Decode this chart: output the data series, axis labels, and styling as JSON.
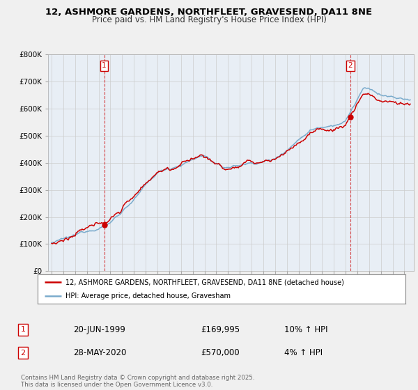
{
  "title": "12, ASHMORE GARDENS, NORTHFLEET, GRAVESEND, DA11 8NE",
  "subtitle": "Price paid vs. HM Land Registry's House Price Index (HPI)",
  "background_color": "#f0f0f0",
  "plot_bg_color": "#e8eef5",
  "sale1_date": "20-JUN-1999",
  "sale1_price": 169995,
  "sale1_hpi": "10% ↑ HPI",
  "sale2_date": "28-MAY-2020",
  "sale2_price": 570000,
  "sale2_hpi": "4% ↑ HPI",
  "legend_line1": "12, ASHMORE GARDENS, NORTHFLEET, GRAVESEND, DA11 8NE (detached house)",
  "legend_line2": "HPI: Average price, detached house, Gravesham",
  "footer": "Contains HM Land Registry data © Crown copyright and database right 2025.\nThis data is licensed under the Open Government Licence v3.0.",
  "red_color": "#cc0000",
  "blue_color": "#7aabcc",
  "sale_dot_color": "#cc0000",
  "ylim_max": 800000,
  "ylim_min": 0,
  "sale1_year": 1999.47,
  "sale2_year": 2020.41
}
